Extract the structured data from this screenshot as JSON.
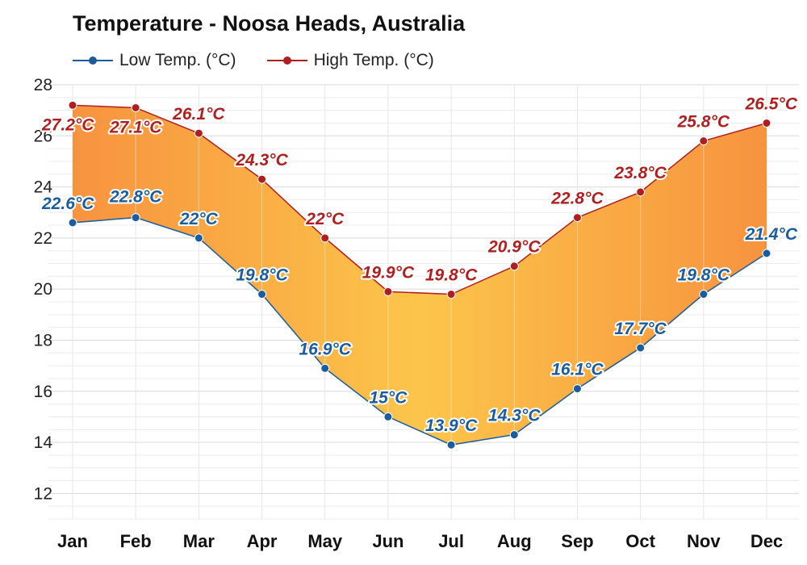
{
  "chart_data": {
    "type": "line",
    "title": "Temperature - Noosa Heads, Australia",
    "categories": [
      "Jan",
      "Feb",
      "Mar",
      "Apr",
      "May",
      "Jun",
      "Jul",
      "Aug",
      "Sep",
      "Oct",
      "Nov",
      "Dec"
    ],
    "series": [
      {
        "name": "Low Temp. (°C)",
        "color": "#1a5c9e",
        "values": [
          22.6,
          22.8,
          22,
          19.8,
          16.9,
          15,
          13.9,
          14.3,
          16.1,
          17.7,
          19.8,
          21.4
        ],
        "labels": [
          "22.6°C",
          "22.8°C",
          "22°C",
          "19.8°C",
          "16.9°C",
          "15°C",
          "13.9°C",
          "14.3°C",
          "16.1°C",
          "17.7°C",
          "19.8°C",
          "21.4°C"
        ]
      },
      {
        "name": "High Temp. (°C)",
        "color": "#b01f1f",
        "values": [
          27.2,
          27.1,
          26.1,
          24.3,
          22,
          19.9,
          19.8,
          20.9,
          22.8,
          23.8,
          25.8,
          26.5
        ],
        "labels": [
          "27.2°C",
          "27.1°C",
          "26.1°C",
          "24.3°C",
          "22°C",
          "19.9°C",
          "19.8°C",
          "20.9°C",
          "22.8°C",
          "23.8°C",
          "25.8°C",
          "26.5°C"
        ]
      }
    ],
    "ylim": [
      11,
      28
    ],
    "yticks": [
      12,
      14,
      16,
      18,
      20,
      22,
      24,
      26,
      28
    ],
    "xlabel": "",
    "ylabel": "",
    "grid": true,
    "legend": "top-left",
    "fill_between": true
  }
}
